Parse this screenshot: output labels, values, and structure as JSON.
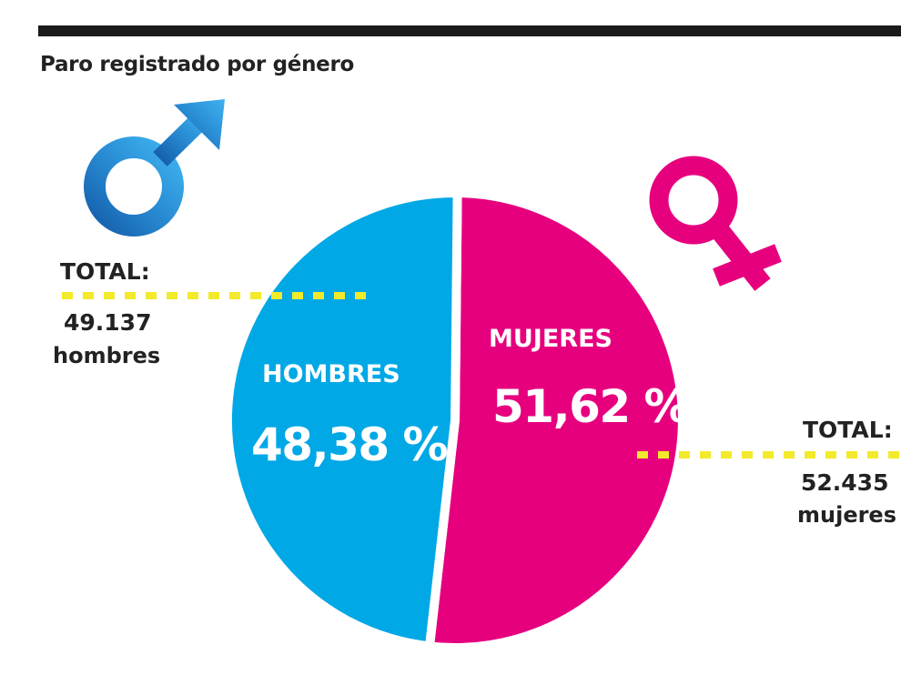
{
  "title": "Paro registrado por género",
  "icons": {
    "male": "male-symbol-icon",
    "female": "female-symbol-icon"
  },
  "colors": {
    "hombres": "#00a8e6",
    "mujeres": "#e6007e",
    "leader": "#f2ea2b",
    "rule": "#1a1a1a"
  },
  "hombres": {
    "label": "HOMBRES",
    "percent": "48,38 %",
    "total_label": "TOTAL:",
    "total_value": "49.137",
    "unit": "hombres"
  },
  "mujeres": {
    "label": "MUJERES",
    "percent": "51,62 %",
    "total_label": "TOTAL:",
    "total_value": "52.435",
    "unit": "mujeres"
  },
  "chart_data": {
    "type": "pie",
    "title": "Paro registrado por género",
    "categories": [
      "HOMBRES",
      "MUJERES"
    ],
    "values": [
      48.38,
      51.62
    ],
    "totals": [
      49137,
      52435
    ],
    "unit": "%"
  }
}
